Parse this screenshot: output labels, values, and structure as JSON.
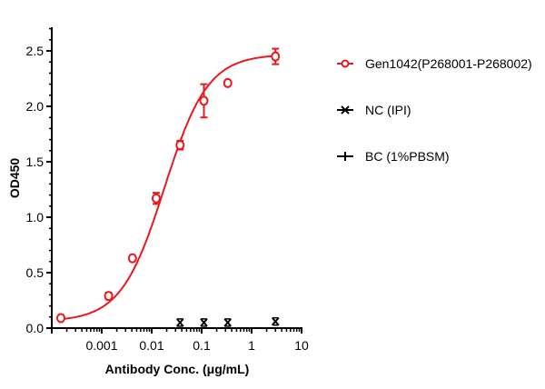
{
  "chart_data": {
    "type": "scatter",
    "title": "",
    "xlabel": "Antibody Conc. (μg/mL)",
    "ylabel": "OD450",
    "xscale": "log",
    "xlim": [
      0.0001,
      10
    ],
    "ylim": [
      0,
      2.7
    ],
    "x_ticks": [
      {
        "value": 0.001,
        "label": "0.001"
      },
      {
        "value": 0.01,
        "label": "0.01"
      },
      {
        "value": 0.1,
        "label": "0.1"
      },
      {
        "value": 1,
        "label": "1"
      },
      {
        "value": 10,
        "label": "10"
      }
    ],
    "y_ticks": [
      {
        "value": 0.0,
        "label": "0.0"
      },
      {
        "value": 0.5,
        "label": "0.5"
      },
      {
        "value": 1.0,
        "label": "1.0"
      },
      {
        "value": 1.5,
        "label": "1.5"
      },
      {
        "value": 2.0,
        "label": "2.0"
      },
      {
        "value": 2.5,
        "label": "2.5"
      }
    ],
    "grid": false,
    "legend_position": "right",
    "series": [
      {
        "name": "Gen1042(P268001-P268002)",
        "color": "#e8191f",
        "marker": "open-circle",
        "fit": "4PL sigmoidal curve",
        "x": [
          0.000152,
          0.00137,
          0.00412,
          0.0123,
          0.037,
          0.111,
          0.333,
          3.0
        ],
        "y": [
          0.09,
          0.29,
          0.63,
          1.17,
          1.65,
          2.05,
          2.21,
          2.45
        ],
        "error": [
          0.01,
          0.03,
          0.02,
          0.05,
          0.04,
          0.15,
          0.02,
          0.07
        ],
        "fit_params": {
          "bottom": 0.06,
          "top": 2.47,
          "ec50": 0.018,
          "hill": 1.0
        }
      },
      {
        "name": "NC (IPI)",
        "color": "#000000",
        "marker": "x",
        "x": [
          0.037,
          0.111,
          0.333,
          3.0
        ],
        "y": [
          0.05,
          0.05,
          0.05,
          0.06
        ]
      },
      {
        "name": "BC (1%PBSM)",
        "color": "#000000",
        "marker": "plus-line",
        "x": [],
        "y": []
      }
    ]
  }
}
